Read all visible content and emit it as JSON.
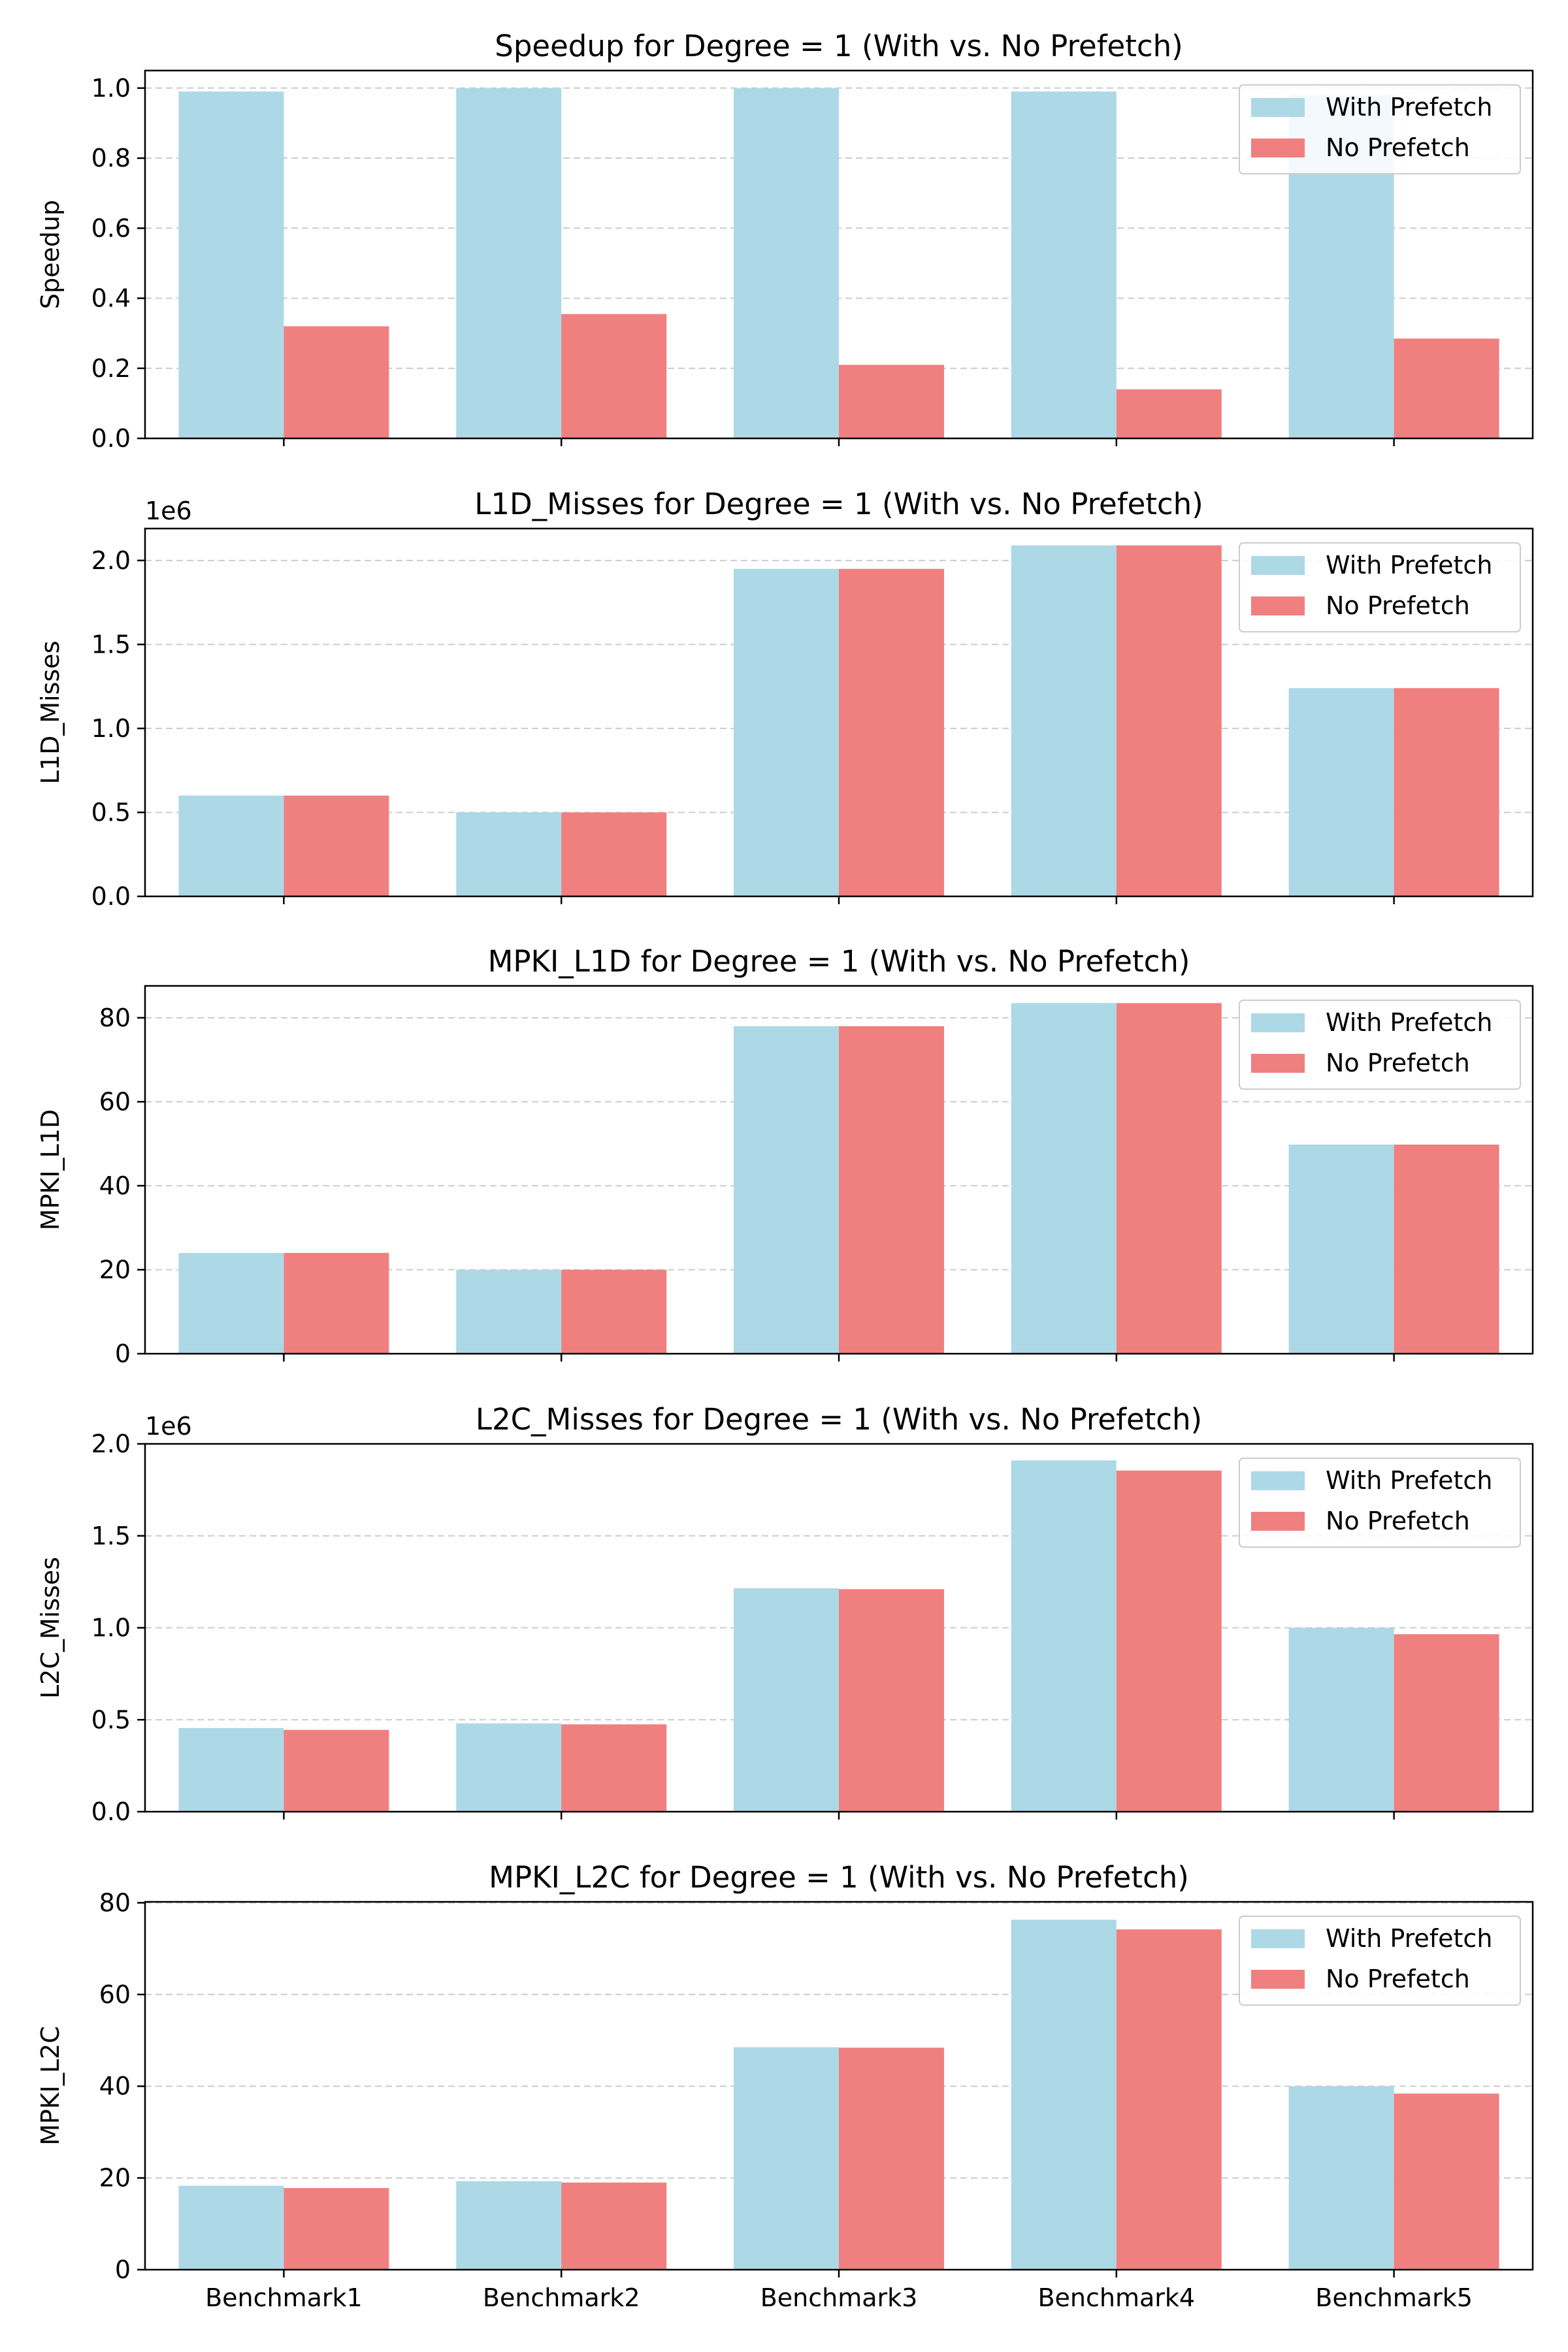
{
  "colors": {
    "with_prefetch": "#add8e6",
    "no_prefetch": "#f08080",
    "grid": "#cccccc",
    "axes": "#000000",
    "background": "#ffffff"
  },
  "chart_data": [
    {
      "type": "bar",
      "title": "Speedup for Degree = 1 (With vs. No Prefetch)",
      "xlabel": "",
      "ylabel": "Speedup",
      "offset_label": "",
      "categories": [
        "Benchmark1",
        "Benchmark2",
        "Benchmark3",
        "Benchmark4",
        "Benchmark5"
      ],
      "show_x_ticklabels": false,
      "ylim": [
        0,
        1.05
      ],
      "yticks": [
        0.0,
        0.2,
        0.4,
        0.6,
        0.8,
        1.0
      ],
      "ytick_labels": [
        "0.0",
        "0.2",
        "0.4",
        "0.6",
        "0.8",
        "1.0"
      ],
      "grid": "y-dashed",
      "legend": "top-right",
      "series": [
        {
          "name": "With Prefetch",
          "values": [
            0.99,
            1.0,
            1.0,
            0.99,
            0.98
          ]
        },
        {
          "name": "No Prefetch",
          "values": [
            0.32,
            0.355,
            0.21,
            0.14,
            0.285
          ]
        }
      ]
    },
    {
      "type": "bar",
      "title": "L1D_Misses for Degree = 1 (With vs. No Prefetch)",
      "xlabel": "",
      "ylabel": "L1D_Misses",
      "offset_label": "1e6",
      "categories": [
        "Benchmark1",
        "Benchmark2",
        "Benchmark3",
        "Benchmark4",
        "Benchmark5"
      ],
      "show_x_ticklabels": false,
      "ylim": [
        0,
        2.19
      ],
      "yticks": [
        0.0,
        0.5,
        1.0,
        1.5,
        2.0
      ],
      "ytick_labels": [
        "0.0",
        "0.5",
        "1.0",
        "1.5",
        "2.0"
      ],
      "grid": "y-dashed",
      "legend": "top-right",
      "series": [
        {
          "name": "With Prefetch",
          "values": [
            0.6,
            0.5,
            1.95,
            2.09,
            1.24
          ]
        },
        {
          "name": "No Prefetch",
          "values": [
            0.6,
            0.5,
            1.95,
            2.09,
            1.24
          ]
        }
      ]
    },
    {
      "type": "bar",
      "title": "MPKI_L1D for Degree = 1 (With vs. No Prefetch)",
      "xlabel": "",
      "ylabel": "MPKI_L1D",
      "offset_label": "",
      "categories": [
        "Benchmark1",
        "Benchmark2",
        "Benchmark3",
        "Benchmark4",
        "Benchmark5"
      ],
      "show_x_ticklabels": false,
      "ylim": [
        0,
        87.6
      ],
      "yticks": [
        0,
        20,
        40,
        60,
        80
      ],
      "ytick_labels": [
        "0",
        "20",
        "40",
        "60",
        "80"
      ],
      "grid": "y-dashed",
      "legend": "top-right",
      "series": [
        {
          "name": "With Prefetch",
          "values": [
            24,
            20,
            78,
            83.5,
            49.8
          ]
        },
        {
          "name": "No Prefetch",
          "values": [
            24,
            20,
            78,
            83.5,
            49.8
          ]
        }
      ]
    },
    {
      "type": "bar",
      "title": "L2C_Misses for Degree = 1 (With vs. No Prefetch)",
      "xlabel": "",
      "ylabel": "L2C_Misses",
      "offset_label": "1e6",
      "categories": [
        "Benchmark1",
        "Benchmark2",
        "Benchmark3",
        "Benchmark4",
        "Benchmark5"
      ],
      "show_x_ticklabels": false,
      "ylim": [
        0,
        2.0
      ],
      "yticks": [
        0.0,
        0.5,
        1.0,
        1.5,
        2.0
      ],
      "ytick_labels": [
        "0.0",
        "0.5",
        "1.0",
        "1.5",
        "2.0"
      ],
      "grid": "y-dashed",
      "legend": "top-right",
      "series": [
        {
          "name": "With Prefetch",
          "values": [
            0.455,
            0.48,
            1.215,
            1.91,
            1.0
          ]
        },
        {
          "name": "No Prefetch",
          "values": [
            0.445,
            0.475,
            1.21,
            1.855,
            0.965
          ]
        }
      ]
    },
    {
      "type": "bar",
      "title": "MPKI_L2C for Degree = 1 (With vs. No Prefetch)",
      "xlabel": "",
      "ylabel": "MPKI_L2C",
      "offset_label": "",
      "categories": [
        "Benchmark1",
        "Benchmark2",
        "Benchmark3",
        "Benchmark4",
        "Benchmark5"
      ],
      "show_x_ticklabels": true,
      "ylim": [
        0,
        80.2
      ],
      "yticks": [
        0,
        20,
        40,
        60,
        80
      ],
      "ytick_labels": [
        "0",
        "20",
        "40",
        "60",
        "80"
      ],
      "grid": "y-dashed",
      "legend": "top-right",
      "series": [
        {
          "name": "With Prefetch",
          "values": [
            18.3,
            19.3,
            48.5,
            76.3,
            40.0
          ]
        },
        {
          "name": "No Prefetch",
          "values": [
            17.8,
            19.0,
            48.4,
            74.2,
            38.4
          ]
        }
      ]
    }
  ]
}
